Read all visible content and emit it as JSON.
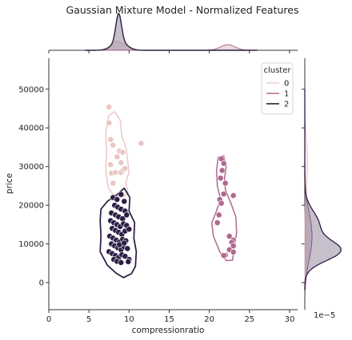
{
  "chart_data": {
    "type": "scatter",
    "title": "Gaussian Mixture Model - Normalized Features",
    "xlabel": "compressionratio",
    "ylabel": "price",
    "xlim": [
      0,
      31
    ],
    "ylim": [
      -7000,
      58000
    ],
    "xticks": [
      "0",
      "5",
      "10",
      "15",
      "20",
      "25",
      "30"
    ],
    "yticks": [
      "0",
      "10000",
      "20000",
      "30000",
      "40000",
      "50000"
    ],
    "xtick_values": [
      0,
      5,
      10,
      15,
      20,
      25,
      30
    ],
    "ytick_values": [
      0,
      10000,
      20000,
      30000,
      40000,
      50000
    ],
    "marginal_scale_label": "1e−5",
    "legend": {
      "title": "cluster",
      "placement": "top-right",
      "entries": [
        {
          "label": "0",
          "color": "#f0d0cc"
        },
        {
          "label": "1",
          "color": "#b57194"
        },
        {
          "label": "2",
          "color": "#2c1c3d"
        }
      ]
    },
    "series": [
      {
        "name": "0",
        "color": "#e8c7c5",
        "points": [
          [
            7.5,
            45400
          ],
          [
            7.5,
            41300
          ],
          [
            7.7,
            37000
          ],
          [
            8.0,
            35500
          ],
          [
            8.8,
            34000
          ],
          [
            9.0,
            31000
          ],
          [
            9.2,
            33700
          ],
          [
            7.8,
            28300
          ],
          [
            8.3,
            28500
          ],
          [
            9.0,
            28500
          ],
          [
            9.3,
            29200
          ],
          [
            9.5,
            29500
          ],
          [
            7.7,
            30500
          ],
          [
            8.5,
            32500
          ],
          [
            11.5,
            36000
          ],
          [
            8.0,
            25700
          ]
        ]
      },
      {
        "name": "1",
        "color": "#b0698f",
        "points": [
          [
            21.5,
            32000
          ],
          [
            21.8,
            30800
          ],
          [
            21.6,
            29000
          ],
          [
            21.4,
            27000
          ],
          [
            22.0,
            25700
          ],
          [
            21.8,
            22900
          ],
          [
            21.3,
            21500
          ],
          [
            21.5,
            20500
          ],
          [
            23.0,
            22500
          ],
          [
            21.2,
            17500
          ],
          [
            21.0,
            15500
          ],
          [
            22.5,
            12000
          ],
          [
            23.0,
            11000
          ],
          [
            22.8,
            10400
          ],
          [
            23.0,
            9500
          ],
          [
            22.5,
            8500
          ],
          [
            23.0,
            7900
          ],
          [
            22.0,
            7100
          ],
          [
            21.8,
            7000
          ]
        ]
      },
      {
        "name": "2",
        "color": "#2d1e45",
        "points": [
          [
            8.0,
            22000
          ],
          [
            8.5,
            21500
          ],
          [
            9.0,
            22800
          ],
          [
            9.4,
            21000
          ],
          [
            8.2,
            20000
          ],
          [
            8.6,
            19500
          ],
          [
            9.0,
            19000
          ],
          [
            9.5,
            18500
          ],
          [
            7.8,
            18000
          ],
          [
            8.3,
            17500
          ],
          [
            8.7,
            17000
          ],
          [
            9.2,
            16500
          ],
          [
            9.7,
            17500
          ],
          [
            7.7,
            16000
          ],
          [
            8.1,
            15500
          ],
          [
            8.5,
            15000
          ],
          [
            8.9,
            14500
          ],
          [
            9.3,
            15200
          ],
          [
            9.7,
            14800
          ],
          [
            7.9,
            14000
          ],
          [
            8.3,
            13500
          ],
          [
            8.7,
            13000
          ],
          [
            9.1,
            12500
          ],
          [
            9.5,
            13300
          ],
          [
            10.0,
            13800
          ],
          [
            7.6,
            12000
          ],
          [
            8.0,
            11500
          ],
          [
            8.4,
            11000
          ],
          [
            8.8,
            10500
          ],
          [
            9.2,
            11200
          ],
          [
            9.6,
            10800
          ],
          [
            7.8,
            10000
          ],
          [
            8.2,
            9500
          ],
          [
            8.6,
            9000
          ],
          [
            9.0,
            8500
          ],
          [
            9.4,
            9200
          ],
          [
            9.8,
            8800
          ],
          [
            7.5,
            8000
          ],
          [
            7.9,
            7500
          ],
          [
            8.3,
            7000
          ],
          [
            8.7,
            6500
          ],
          [
            9.1,
            7200
          ],
          [
            9.5,
            6800
          ],
          [
            10.0,
            6000
          ],
          [
            8.1,
            6000
          ],
          [
            8.5,
            5500
          ],
          [
            9.0,
            5200
          ],
          [
            9.9,
            5400
          ],
          [
            8.8,
            9800
          ],
          [
            9.4,
            10200
          ]
        ]
      }
    ]
  }
}
